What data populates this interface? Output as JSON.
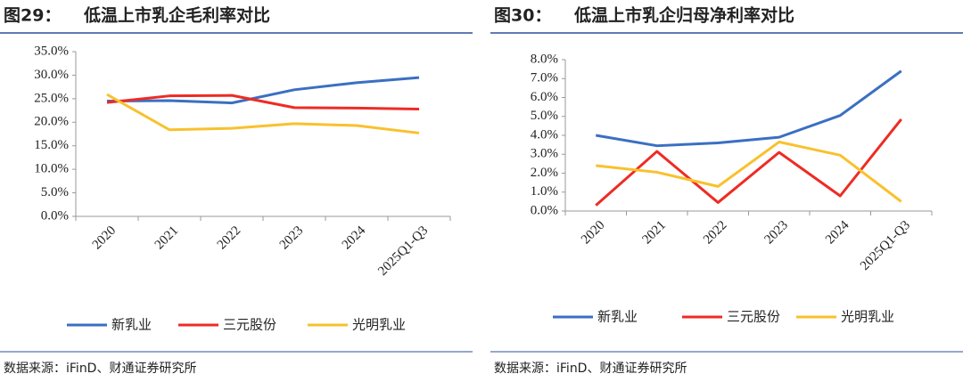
{
  "chart_data": [
    {
      "type": "line",
      "label": "图29：",
      "title": "低温上市乳企毛利率对比",
      "source": "数据来源：iFinD、财通证券研究所",
      "categories": [
        "2020",
        "2021",
        "2022",
        "2023",
        "2024",
        "2025Q1-Q3"
      ],
      "series": [
        {
          "name": "新乳业",
          "color": "#3b6fc2",
          "values": [
            24.5,
            24.6,
            24.1,
            26.9,
            28.4,
            29.5
          ]
        },
        {
          "name": "三元股份",
          "color": "#ee2b24",
          "values": [
            24.2,
            25.6,
            25.7,
            23.1,
            23.0,
            22.8
          ]
        },
        {
          "name": "光明乳业",
          "color": "#f8c12d",
          "values": [
            25.9,
            18.4,
            18.7,
            19.7,
            19.3,
            17.7
          ]
        }
      ],
      "ylim": [
        0,
        35
      ],
      "yticks": [
        {
          "value": 0,
          "label": "0.0%"
        },
        {
          "value": 5,
          "label": "5.0%"
        },
        {
          "value": 10,
          "label": "10.0%"
        },
        {
          "value": 15,
          "label": "15.0%"
        },
        {
          "value": 20,
          "label": "20.0%"
        },
        {
          "value": 25,
          "label": "25.0%"
        },
        {
          "value": 30,
          "label": "30.0%"
        },
        {
          "value": 35,
          "label": "35.0%"
        }
      ],
      "grid": false
    },
    {
      "type": "line",
      "label": "图30：",
      "title": "低温上市乳企归母净利率对比",
      "source": "数据来源：iFinD、财通证券研究所",
      "categories": [
        "2020",
        "2021",
        "2022",
        "2023",
        "2024",
        "2025Q1-Q3"
      ],
      "series": [
        {
          "name": "新乳业",
          "color": "#3b6fc2",
          "values": [
            4.0,
            3.45,
            3.6,
            3.9,
            5.05,
            7.4
          ]
        },
        {
          "name": "三元股份",
          "color": "#ee2b24",
          "values": [
            0.3,
            3.15,
            0.45,
            3.1,
            0.8,
            4.85
          ]
        },
        {
          "name": "光明乳业",
          "color": "#f8c12d",
          "values": [
            2.4,
            2.05,
            1.3,
            3.65,
            2.95,
            0.5
          ]
        }
      ],
      "ylim": [
        0,
        8
      ],
      "yticks": [
        {
          "value": 0,
          "label": "0.0%"
        },
        {
          "value": 1,
          "label": "1.0%"
        },
        {
          "value": 2,
          "label": "2.0%"
        },
        {
          "value": 3,
          "label": "3.0%"
        },
        {
          "value": 4,
          "label": "4.0%"
        },
        {
          "value": 5,
          "label": "5.0%"
        },
        {
          "value": 6,
          "label": "6.0%"
        },
        {
          "value": 7,
          "label": "7.0%"
        },
        {
          "value": 8,
          "label": "8.0%"
        }
      ],
      "grid": false
    }
  ]
}
